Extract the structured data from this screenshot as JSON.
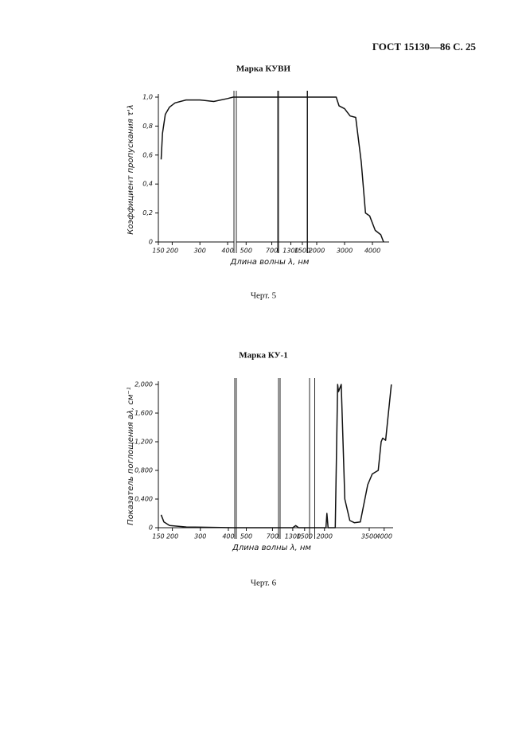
{
  "page_header": {
    "text": "ГОСТ 15130—86 С. 25"
  },
  "chart_data": [
    {
      "type": "line",
      "title": "Марка КУВИ",
      "caption": "Черт. 5",
      "ylabel": "Коэффициент пропускания τ'λ",
      "xlabel": "Длина волны λ, нм",
      "ylim": [
        0,
        1.0
      ],
      "yticks": [
        0,
        {
          "value": 0.2,
          "label": "0,2"
        },
        {
          "value": 0.4,
          "label": "0,4"
        },
        {
          "value": 0.6,
          "label": "0,6"
        },
        {
          "value": 0.8,
          "label": "0,8"
        },
        {
          "value": 1.0,
          "label": "1,0"
        }
      ],
      "x_segments": [
        {
          "xlim": [
            150,
            420
          ],
          "xticks": [
            150,
            200,
            300,
            400
          ]
        },
        {
          "xlim": [
            430,
            740
          ],
          "xticks": [
            500,
            700
          ]
        },
        {
          "xlim": [
            1100,
            1570
          ],
          "xticks": [
            1300,
            1500
          ]
        },
        {
          "xlim": [
            1700,
            4600
          ],
          "xticks": [
            2000,
            3000,
            4000
          ]
        }
      ],
      "color": "#111111",
      "x": [
        160,
        165,
        175,
        190,
        210,
        250,
        300,
        350,
        400,
        420,
        430,
        740,
        1100,
        1570,
        1700,
        2700,
        2800,
        3000,
        3200,
        3400,
        3600,
        3750,
        3900,
        4100,
        4300,
        4400
      ],
      "values": [
        0.57,
        0.75,
        0.88,
        0.93,
        0.96,
        0.98,
        0.98,
        0.97,
        0.99,
        1.0,
        1.0,
        1.0,
        1.0,
        1.0,
        1.0,
        1.0,
        0.94,
        0.92,
        0.87,
        0.86,
        0.55,
        0.2,
        0.18,
        0.08,
        0.05,
        0.0
      ]
    },
    {
      "type": "line",
      "title": "Марка КУ-1",
      "caption": "Черт. 6",
      "ylabel": "Показатель поглощения aλ, см⁻¹",
      "xlabel": "Длина волны λ, нм",
      "ylim": [
        0,
        2.0
      ],
      "yticks": [
        0,
        {
          "value": 0.4,
          "label": "0,400"
        },
        {
          "value": 0.8,
          "label": "0,800"
        },
        {
          "value": 1.2,
          "label": "1,200"
        },
        {
          "value": 1.6,
          "label": "1,600"
        },
        {
          "value": 2.0,
          "label": "2,000"
        }
      ],
      "x_segments": [
        {
          "xlim": [
            150,
            420
          ],
          "xticks": [
            150,
            200,
            300,
            400
          ]
        },
        {
          "xlim": [
            430,
            740
          ],
          "xticks": [
            500,
            700
          ]
        },
        {
          "xlim": [
            1100,
            1570
          ],
          "xticks": [
            1300,
            1500
          ]
        },
        {
          "xlim": [
            1700,
            4300
          ],
          "xticks": [
            2000,
            3500,
            4000
          ]
        }
      ],
      "color": "#111111",
      "x": [
        160,
        170,
        190,
        250,
        420,
        430,
        740,
        1100,
        1300,
        1350,
        1400,
        1570,
        1700,
        2050,
        2080,
        2120,
        2360,
        2440,
        2470,
        2560,
        2680,
        2850,
        3000,
        3200,
        3450,
        3600,
        3800,
        3900,
        3950,
        4050,
        4240
      ],
      "values": [
        0.18,
        0.08,
        0.03,
        0.01,
        0.0,
        0.0,
        0.0,
        0.0,
        0.0,
        0.03,
        0.0,
        0.0,
        0.0,
        0.0,
        0.2,
        0.0,
        0.0,
        2.0,
        1.9,
        2.0,
        0.4,
        0.1,
        0.07,
        0.08,
        0.6,
        0.75,
        0.8,
        1.2,
        1.25,
        1.22,
        2.0
      ]
    }
  ]
}
